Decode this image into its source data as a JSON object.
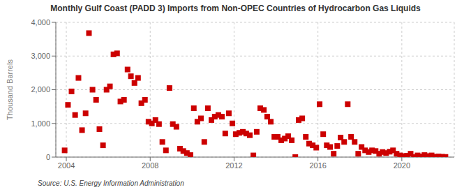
{
  "chart_data": {
    "type": "scatter",
    "title": "Monthly Gulf Coast (PADD 3) Imports from Non-OPEC Countries of Hydrocarbon Gas Liquids",
    "y_label": "Thousand Barrels",
    "annotations": [
      "Source: U.S. Energy Information Administration"
    ],
    "x": [
      2003.92,
      2004.08,
      2004.25,
      2004.42,
      2004.58,
      2004.75,
      2004.92,
      2005.08,
      2005.25,
      2005.42,
      2005.58,
      2005.75,
      2005.92,
      2006.08,
      2006.25,
      2006.42,
      2006.58,
      2006.75,
      2006.92,
      2007.08,
      2007.25,
      2007.42,
      2007.58,
      2007.75,
      2007.92,
      2008.08,
      2008.25,
      2008.42,
      2008.58,
      2008.75,
      2008.92,
      2009.08,
      2009.25,
      2009.42,
      2009.58,
      2009.75,
      2009.92,
      2010.08,
      2010.25,
      2010.42,
      2010.58,
      2010.75,
      2010.92,
      2011.08,
      2011.25,
      2011.42,
      2011.58,
      2011.75,
      2011.92,
      2012.08,
      2012.25,
      2012.42,
      2012.58,
      2012.75,
      2012.92,
      2013.08,
      2013.25,
      2013.42,
      2013.58,
      2013.75,
      2013.92,
      2014.08,
      2014.25,
      2014.42,
      2014.58,
      2014.75,
      2014.92,
      2015.08,
      2015.25,
      2015.42,
      2015.58,
      2015.75,
      2015.92,
      2016.08,
      2016.25,
      2016.42,
      2016.58,
      2016.75,
      2016.92,
      2017.08,
      2017.25,
      2017.42,
      2017.58,
      2017.75,
      2017.92,
      2018.08,
      2018.25,
      2018.42,
      2018.58,
      2018.75,
      2018.92,
      2019.08,
      2019.25,
      2019.42,
      2019.58,
      2019.75,
      2019.92,
      2020.08,
      2020.25,
      2020.42,
      2020.58,
      2020.75,
      2020.92,
      2021.08,
      2021.25,
      2021.42,
      2021.58,
      2021.75,
      2021.92,
      2022.08
    ],
    "values": [
      200,
      1550,
      1950,
      1250,
      2350,
      800,
      1300,
      3680,
      2000,
      1700,
      830,
      350,
      2000,
      2100,
      3050,
      3080,
      1650,
      1700,
      2600,
      2400,
      2200,
      2350,
      1600,
      1700,
      1050,
      1000,
      1100,
      980,
      450,
      200,
      2050,
      980,
      900,
      250,
      180,
      120,
      60,
      1450,
      1050,
      1150,
      450,
      1450,
      1100,
      1200,
      1250,
      1200,
      700,
      1300,
      1000,
      680,
      720,
      750,
      700,
      650,
      50,
      750,
      1450,
      1400,
      1200,
      1050,
      600,
      600,
      500,
      550,
      620,
      500,
      0,
      1100,
      1150,
      600,
      400,
      350,
      280,
      1570,
      680,
      350,
      300,
      100,
      330,
      580,
      450,
      1570,
      600,
      450,
      100,
      300,
      200,
      150,
      200,
      180,
      100,
      150,
      120,
      160,
      200,
      100,
      50,
      30,
      40,
      100,
      0,
      50,
      20,
      60,
      30,
      50,
      10,
      20,
      10,
      5
    ],
    "color": "#cc0000",
    "marker": "square",
    "xlim": [
      2003.5,
      2022.5
    ],
    "ylim": [
      0,
      4000
    ],
    "xticks": [
      2004,
      2008,
      2012,
      2016,
      2020
    ],
    "yticks": [
      0,
      {
        "value": 1000,
        "label": "1,000"
      },
      {
        "value": 2000,
        "label": "2,000"
      },
      {
        "value": 3000,
        "label": "3,000"
      },
      {
        "value": 4000,
        "label": "4,000"
      }
    ],
    "grid": true
  }
}
